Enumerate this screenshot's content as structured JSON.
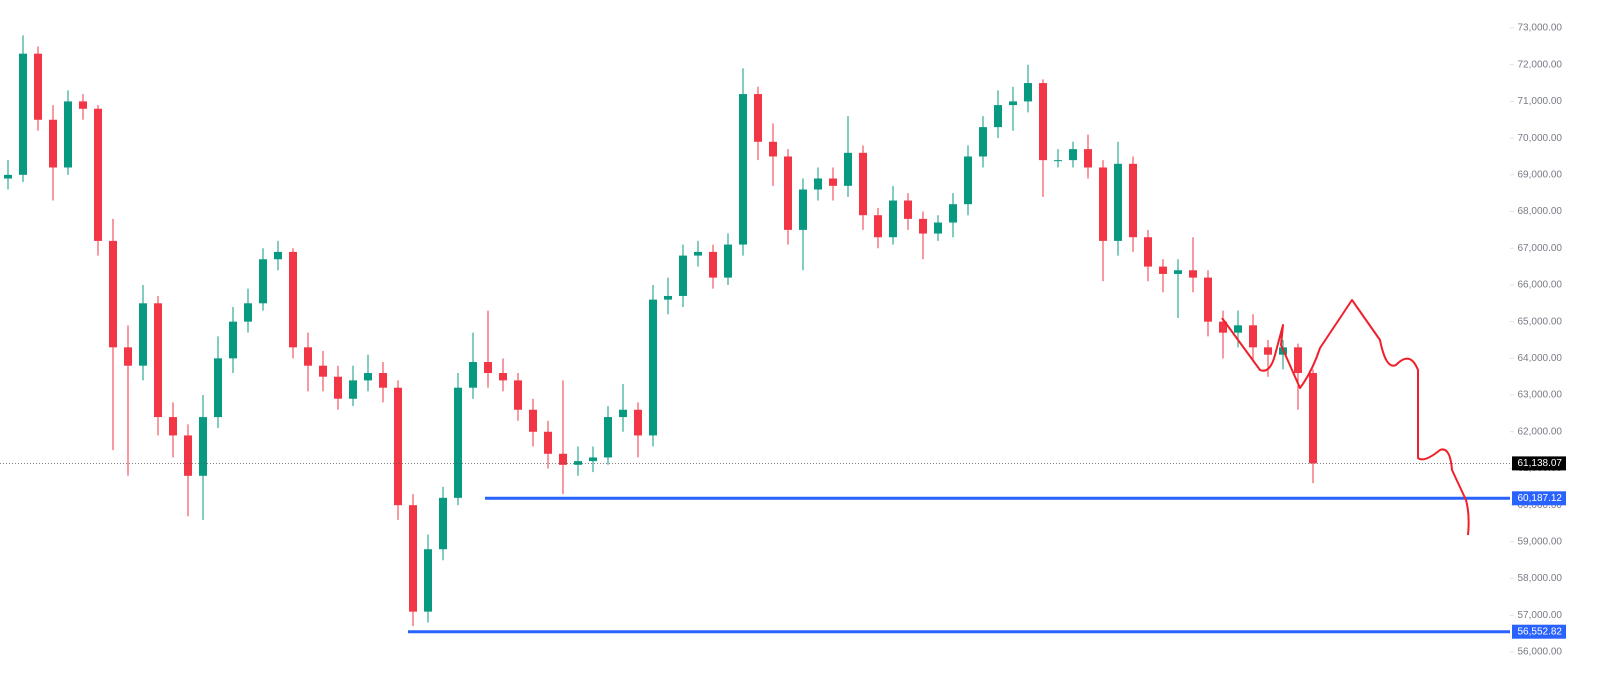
{
  "chart_data": {
    "type": "candlestick",
    "up_color": "#089981",
    "down_color": "#f23645",
    "open": [
      68900,
      69000,
      72300,
      70500,
      69200,
      71000,
      70800,
      67200,
      64300,
      63800,
      65500,
      62400,
      61900,
      60800,
      62400,
      64000,
      65000,
      65500,
      66700,
      66900,
      64300,
      63800,
      63500,
      62900,
      63400,
      63600,
      63200,
      60000,
      57100,
      58800,
      60200,
      63200,
      63900,
      63600,
      63400,
      62600,
      62000,
      61400,
      61100,
      61200,
      61300,
      62400,
      62600,
      61900,
      65600,
      65700,
      66800,
      66900,
      66200,
      67100,
      71200,
      69900,
      69500,
      67500,
      68600,
      68900,
      68700,
      69600,
      67900,
      67300,
      68300,
      67800,
      67400,
      67700,
      68200,
      69500,
      70300,
      70900,
      71000,
      71500,
      69400,
      69400,
      69700,
      69200,
      67200,
      69300,
      67300,
      66500,
      66300,
      66400,
      66200,
      65000,
      64700,
      64900,
      64300,
      64100,
      64300,
      63600
    ],
    "high": [
      69400,
      72800,
      72500,
      70900,
      71300,
      71200,
      70900,
      67800,
      64900,
      66000,
      65700,
      62800,
      62200,
      63000,
      64600,
      65400,
      65900,
      67000,
      67200,
      67000,
      64700,
      64200,
      63800,
      63800,
      64100,
      63900,
      63400,
      60300,
      59200,
      60500,
      63600,
      64700,
      65300,
      64000,
      63600,
      62900,
      62300,
      63400,
      61600,
      61600,
      62700,
      63300,
      62800,
      66000,
      66200,
      67100,
      67200,
      67100,
      67400,
      71900,
      71400,
      70400,
      69700,
      68900,
      69200,
      69200,
      70600,
      69800,
      68100,
      68700,
      68500,
      68000,
      67900,
      68500,
      69800,
      70600,
      71300,
      71400,
      72000,
      71600,
      69700,
      69900,
      70100,
      69400,
      69900,
      69500,
      67500,
      66700,
      66700,
      67300,
      66400,
      65300,
      65300,
      65200,
      64500,
      64500,
      64400,
      63700
    ],
    "low": [
      68600,
      68800,
      70200,
      68300,
      69000,
      70500,
      66800,
      61500,
      60800,
      63400,
      61900,
      61300,
      59700,
      59600,
      62100,
      63600,
      64700,
      65300,
      66400,
      64000,
      63100,
      63100,
      62600,
      62700,
      63100,
      62800,
      59600,
      56700,
      56800,
      58500,
      60000,
      62900,
      63200,
      63100,
      62300,
      61600,
      61000,
      60300,
      60800,
      60900,
      61100,
      62000,
      61300,
      61600,
      65200,
      65400,
      66500,
      65900,
      66000,
      66800,
      69400,
      68700,
      67100,
      66400,
      68300,
      68300,
      68400,
      67500,
      67000,
      67100,
      67500,
      66700,
      67200,
      67300,
      67900,
      69200,
      70000,
      70200,
      70700,
      68400,
      69200,
      69200,
      68900,
      66100,
      66800,
      66900,
      66100,
      65800,
      65100,
      65800,
      64600,
      64000,
      64300,
      63900,
      63500,
      63700,
      62600,
      60600
    ],
    "close": [
      69000,
      72300,
      70500,
      69200,
      71000,
      70800,
      67200,
      64300,
      63800,
      65500,
      62400,
      61900,
      60800,
      62400,
      64000,
      65000,
      65500,
      66700,
      66900,
      64300,
      63800,
      63500,
      62900,
      63400,
      63600,
      63200,
      60000,
      57100,
      58800,
      60200,
      63200,
      63900,
      63600,
      63400,
      62600,
      62000,
      61400,
      61100,
      61200,
      61300,
      62400,
      62600,
      61900,
      65600,
      65700,
      66800,
      66900,
      66200,
      67100,
      71200,
      69900,
      69500,
      67500,
      68600,
      68900,
      68700,
      69600,
      67900,
      67300,
      68300,
      67800,
      67400,
      67700,
      68200,
      69500,
      70300,
      70900,
      71000,
      71500,
      69400,
      69400,
      69700,
      69200,
      67200,
      69300,
      67300,
      66500,
      66300,
      66400,
      66200,
      65000,
      64700,
      64900,
      64300,
      64100,
      64300,
      63600,
      61138.07
    ],
    "ylim": [
      56000,
      73000
    ],
    "yticks": [
      {
        "value": 56000,
        "label": "56,000.00"
      },
      {
        "value": 57000,
        "label": "57,000.00"
      },
      {
        "value": 58000,
        "label": "58,000.00"
      },
      {
        "value": 59000,
        "label": "59,000.00"
      },
      {
        "value": 60000,
        "label": "60,000.00"
      },
      {
        "value": 61000,
        "label": "61,000.00"
      },
      {
        "value": 62000,
        "label": "62,000.00"
      },
      {
        "value": 63000,
        "label": "63,000.00"
      },
      {
        "value": 64000,
        "label": "64,000.00"
      },
      {
        "value": 65000,
        "label": "65,000.00"
      },
      {
        "value": 66000,
        "label": "66,000.00"
      },
      {
        "value": 67000,
        "label": "67,000.00"
      },
      {
        "value": 68000,
        "label": "68,000.00"
      },
      {
        "value": 69000,
        "label": "69,000.00"
      },
      {
        "value": 70000,
        "label": "70,000.00"
      },
      {
        "value": 71000,
        "label": "71,000.00"
      },
      {
        "value": 72000,
        "label": "72,000.00"
      },
      {
        "value": 73000,
        "label": "73,000.00"
      }
    ],
    "current_price": {
      "value": 61138.07,
      "label": "61,138.07",
      "color": "#000000"
    },
    "levels": [
      {
        "value": 60187.12,
        "label": "60,187.12",
        "color": "#2962ff"
      },
      {
        "value": 56552.82,
        "label": "56,552.82",
        "color": "#2962ff"
      }
    ]
  }
}
